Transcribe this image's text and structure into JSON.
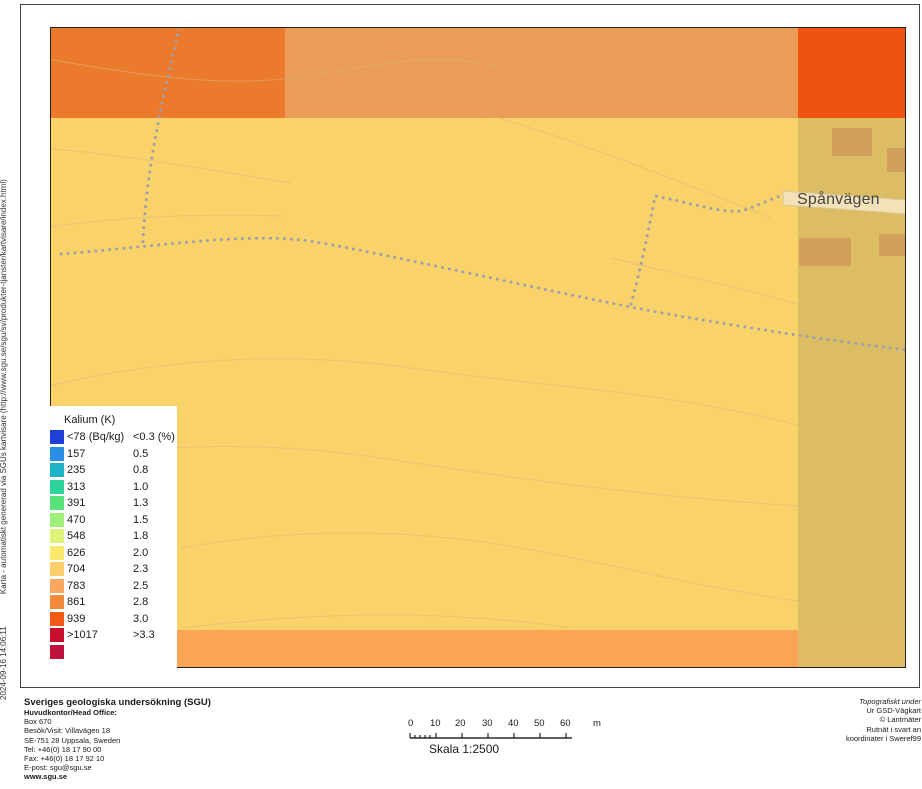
{
  "side_text": {
    "generated": "Karta - automatiskt genererad via SGUs kartvisare (http://www.sgu.se/sgu/sv/produkter-tjanster/kartvisare/index.html)",
    "timestamp": "2024-09-16 14:06:11"
  },
  "map": {
    "street_label": "Spånvägen",
    "colors": {
      "main_field": "#f9d26a",
      "top_left": "#ec7a2c",
      "top_middle": "#eb9c57",
      "top_right": "#f0520f",
      "right_column": "#ddbd63",
      "bottom_band": "#f9a555",
      "bottom_right": "#e0bb63",
      "path_dots": "#9aa0b0",
      "building": "#d09a5a"
    }
  },
  "legend": {
    "title": "Kalium (K)",
    "rows": [
      {
        "value": "<78 (Bq/kg)",
        "percent": "<0.3 (%)",
        "color": "#1f3fd6"
      },
      {
        "value": "157",
        "percent": "0.5",
        "color": "#2b8ee5"
      },
      {
        "value": "235",
        "percent": "0.8",
        "color": "#1fb3c8"
      },
      {
        "value": "313",
        "percent": "1.0",
        "color": "#2ed49a"
      },
      {
        "value": "391",
        "percent": "1.3",
        "color": "#57e27a"
      },
      {
        "value": "470",
        "percent": "1.5",
        "color": "#9ef07a"
      },
      {
        "value": "548",
        "percent": "1.8",
        "color": "#def47a"
      },
      {
        "value": "626",
        "percent": "2.0",
        "color": "#f8e96a"
      },
      {
        "value": "704",
        "percent": "2.3",
        "color": "#fbcd6b"
      },
      {
        "value": "783",
        "percent": "2.5",
        "color": "#f9a75f"
      },
      {
        "value": "861",
        "percent": "2.8",
        "color": "#f38a3a"
      },
      {
        "value": "939",
        "percent": "3.0",
        "color": "#f05a14"
      },
      {
        "value": ">1017",
        "percent": ">3.3",
        "color": "#c8102e"
      },
      {
        "value": "",
        "percent": "",
        "color": "#c0123c"
      }
    ]
  },
  "footer": {
    "org": "Sveriges geologiska undersökning (SGU)",
    "hq": "Huvudkontor/Head Office:",
    "box": "Box 670",
    "visit": "Besök/Visit: Villavägen 18",
    "city": "SE-751 28 Uppsala, Sweden",
    "tel": "Tel:  +46(0) 18 17 90 00",
    "fax": "Fax: +46(0) 18 17 92 10",
    "email": "E-post: sgu@sgu.se",
    "web": "www.sgu.se"
  },
  "scale": {
    "labels": [
      "0",
      "10",
      "20",
      "30",
      "40",
      "50",
      "60"
    ],
    "unit": "m",
    "title": "Skala 1:2500"
  },
  "credits": {
    "line1": "Topografiskt under",
    "line2": "Ur GSD-Vägkart",
    "line3": "© Lantmäter",
    "line4": "Rutnät i svart an",
    "line5": "koordinater i Sweref99"
  }
}
